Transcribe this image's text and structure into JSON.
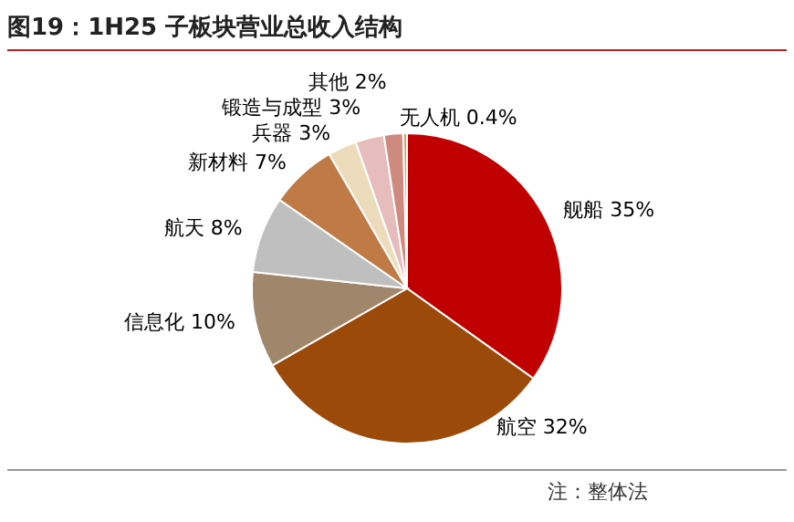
{
  "chart_data": {
    "type": "pie",
    "title": "图19：1H25 子板块营业总收入结构",
    "categories": [
      "舰船",
      "航空",
      "信息化",
      "航天",
      "新材料",
      "兵器",
      "锻造与成型",
      "其他",
      "无人机"
    ],
    "values": [
      35,
      32,
      10,
      8,
      7,
      3,
      3,
      2,
      0.4
    ],
    "value_labels": [
      "35%",
      "32%",
      "10%",
      "8%",
      "7%",
      "3%",
      "3%",
      "2%",
      "0.4%"
    ],
    "colors": [
      "#c00000",
      "#9c4a0a",
      "#a0866a",
      "#bfbfbf",
      "#c07a45",
      "#eddcbc",
      "#e6bcbc",
      "#cf8a80",
      "#c9a86a"
    ],
    "legend": false,
    "annotations": [
      "注：整体法"
    ]
  }
}
